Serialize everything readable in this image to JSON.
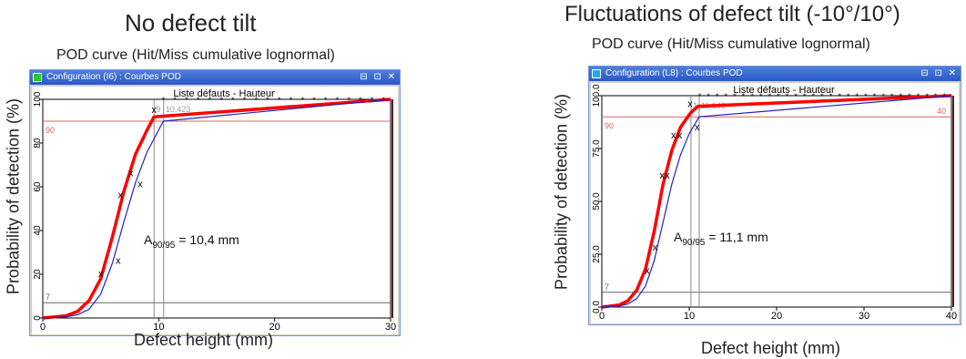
{
  "colors": {
    "background": "#ffffff",
    "curve_main": "#ff0000",
    "curve_bound": "#2020cc",
    "level90": "#e06060",
    "level7": "#666666",
    "vline": "#888888",
    "window_title": "#2958c7"
  },
  "panels": [
    {
      "heading": "No defect tilt",
      "subtitle": "POD curve (Hit/Miss cumulative lognormal)",
      "window_title": "Configuration (I6) : Courbes POD",
      "window_buttons": "⊟ ⊡ ✕",
      "square_color": "#22cc22",
      "plot_header": "Liste défauts - Hauteur",
      "ylabel": "Probability of detection (%)",
      "xlabel": "Defect height (mm)",
      "right_axis_label": "%",
      "annotation": {
        "prefix": "A",
        "sub": "90/95",
        "suffix": " = 10,4 mm"
      }
    },
    {
      "heading": "Fluctuations of defect tilt (-10°/10°)",
      "subtitle": "POD curve (Hit/Miss cumulative lognormal)",
      "window_title": "Configuration (L8) : Courbes POD",
      "window_buttons": "⊟ ⊡ ✕",
      "square_color": "#22aaee",
      "plot_header": "Liste défauts - Hauteur",
      "ylabel": "Probability of detection (%)",
      "xlabel": "Defect height (mm)",
      "right_axis_label": "%",
      "annotation": {
        "prefix": "A",
        "sub": "90/95",
        "suffix": " = 11,1 mm"
      }
    }
  ],
  "chart_data": [
    {
      "type": "line",
      "title": "POD curve (Hit/Miss cumulative lognormal)",
      "xlabel": "Defect height (mm)",
      "ylabel": "Probability of detection (%)",
      "xlim": [
        0,
        30
      ],
      "ylim": [
        0,
        100
      ],
      "xticks": [
        0,
        10,
        20,
        30
      ],
      "yticks": [
        0,
        20,
        40,
        60,
        80,
        100
      ],
      "ytick_labels": [
        "0",
        "20",
        "40",
        "60",
        "80",
        "100"
      ],
      "ref_levels": [
        {
          "y": 90,
          "label": "90"
        },
        {
          "y": 7,
          "label": "7"
        }
      ],
      "vlines": [
        {
          "x": 9.6,
          "label": "9"
        },
        {
          "x": 10.423,
          "label": "10.423"
        }
      ],
      "series": [
        {
          "role": "pod",
          "x": [
            0,
            2,
            3,
            4,
            5,
            6,
            7,
            8,
            9,
            9.6,
            30
          ],
          "y": [
            0,
            1,
            3,
            8,
            18,
            37,
            58,
            75,
            86,
            92,
            100
          ]
        },
        {
          "role": "bound",
          "x": [
            0,
            2,
            3,
            4,
            5,
            6,
            7,
            8,
            9,
            10,
            10.4,
            30
          ],
          "y": [
            0,
            0.5,
            1.5,
            4,
            11,
            25,
            44,
            62,
            76,
            86,
            90,
            100
          ]
        }
      ],
      "hits": [
        {
          "x": 5,
          "y": 20
        },
        {
          "x": 6.5,
          "y": 26
        },
        {
          "x": 6.7,
          "y": 56
        },
        {
          "x": 7.6,
          "y": 66
        },
        {
          "x": 8.4,
          "y": 61
        },
        {
          "x": 9.6,
          "y": 95
        }
      ],
      "top_marks_from_x": 10.4,
      "top_marks_step": 1,
      "top_marks_y": 100
    },
    {
      "type": "line",
      "title": "POD curve (Hit/Miss cumulative lognormal)",
      "xlabel": "Defect height (mm)",
      "ylabel": "Probability of detection (%)",
      "xlim": [
        0,
        40
      ],
      "ylim": [
        0,
        100
      ],
      "xticks": [
        0,
        10,
        20,
        30,
        40
      ],
      "yticks": [
        0,
        25,
        50,
        75,
        100
      ],
      "ytick_labels": [
        "0.0",
        "25.0",
        "50.0",
        "75.0",
        "100.0"
      ],
      "ref_levels": [
        {
          "y": 90,
          "label": "90"
        },
        {
          "y": 7,
          "label": "7"
        }
      ],
      "vlines": [
        {
          "x": 10.2,
          "label": "1"
        },
        {
          "x": 11.143,
          "label": "11.143"
        }
      ],
      "series": [
        {
          "role": "pod",
          "x": [
            0,
            2,
            3,
            4,
            5,
            6,
            7,
            8,
            9,
            10,
            10.2,
            11,
            40
          ],
          "y": [
            0,
            1,
            3,
            8,
            18,
            36,
            58,
            74,
            85,
            91,
            92,
            95,
            100
          ]
        },
        {
          "role": "bound",
          "x": [
            0,
            2,
            3,
            4,
            5,
            6,
            7,
            8,
            9,
            10,
            11,
            11.1,
            40
          ],
          "y": [
            0,
            0.5,
            1.5,
            4,
            10,
            22,
            40,
            58,
            72,
            82,
            89,
            90,
            100
          ]
        }
      ],
      "hits": [
        {
          "x": 5.2,
          "y": 17
        },
        {
          "x": 6.1,
          "y": 28
        },
        {
          "x": 6.9,
          "y": 62
        },
        {
          "x": 7.5,
          "y": 62
        },
        {
          "x": 8.2,
          "y": 81
        },
        {
          "x": 8.9,
          "y": 81
        },
        {
          "x": 10.1,
          "y": 96
        },
        {
          "x": 10.9,
          "y": 85
        }
      ],
      "top_marks_from_x": 11.2,
      "top_marks_step": 1,
      "top_marks_y": 100,
      "right_value_label": "40"
    }
  ]
}
